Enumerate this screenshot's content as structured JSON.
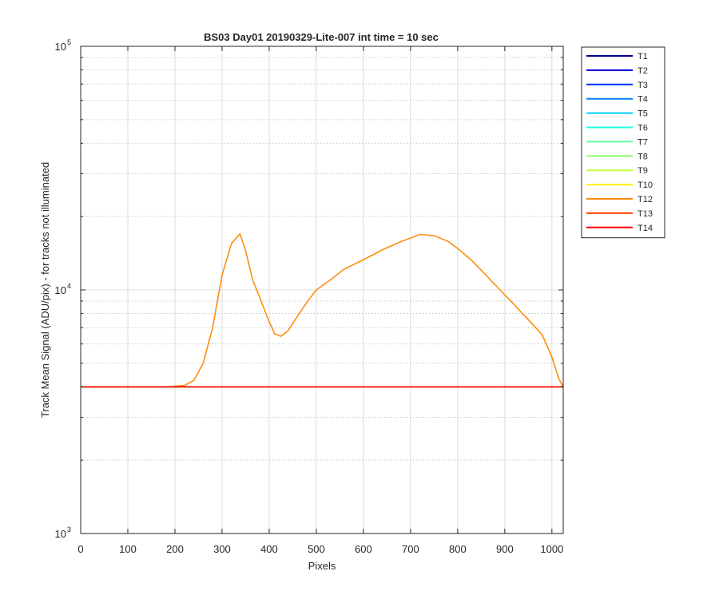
{
  "chart_data": {
    "type": "line",
    "title": "BS03 Day01 20190329-Lite-007 int time = 10 sec",
    "xlabel": "Pixels",
    "ylabel": "Track Mean Signal (ADU/pix) - for tracks not illuminated",
    "xlim": [
      0,
      1024
    ],
    "ylim": [
      1000,
      100000
    ],
    "yscale": "log",
    "grid": true,
    "legend_position": "outside-top-right",
    "x_ticks": [
      0,
      100,
      200,
      300,
      400,
      500,
      600,
      700,
      800,
      900,
      1000
    ],
    "x_tick_labels": [
      "0",
      "100",
      "200",
      "300",
      "400",
      "500",
      "600",
      "700",
      "800",
      "900",
      "1000"
    ],
    "y_ticks": [
      1000,
      10000,
      100000
    ],
    "y_tick_labels": [
      {
        "base": "10",
        "exp": "3"
      },
      {
        "base": "10",
        "exp": "4"
      },
      {
        "base": "10",
        "exp": "5"
      }
    ],
    "x": [
      0,
      1024
    ],
    "series": [
      {
        "name": "T1",
        "color": "#00008f",
        "baseline": 4000
      },
      {
        "name": "T2",
        "color": "#0000df",
        "baseline": 4000
      },
      {
        "name": "T3",
        "color": "#0030ff",
        "baseline": 4000
      },
      {
        "name": "T4",
        "color": "#0080ff",
        "baseline": 4000
      },
      {
        "name": "T5",
        "color": "#00cfff",
        "baseline": 4000
      },
      {
        "name": "T6",
        "color": "#20ffdf",
        "baseline": 4000
      },
      {
        "name": "T7",
        "color": "#60ffa0",
        "baseline": 4000
      },
      {
        "name": "T8",
        "color": "#90ff70",
        "baseline": 4000
      },
      {
        "name": "T9",
        "color": "#c0ff40",
        "baseline": 4000
      },
      {
        "name": "T10",
        "color": "#ffef00",
        "baseline": 4000
      },
      {
        "name": "T12",
        "color": "#ff8c10",
        "points": [
          [
            0,
            4000
          ],
          [
            180,
            4000
          ],
          [
            220,
            4050
          ],
          [
            240,
            4250
          ],
          [
            260,
            5000
          ],
          [
            280,
            7000
          ],
          [
            300,
            11500
          ],
          [
            320,
            15500
          ],
          [
            338,
            17000
          ],
          [
            350,
            14500
          ],
          [
            365,
            11000
          ],
          [
            380,
            9300
          ],
          [
            400,
            7400
          ],
          [
            412,
            6600
          ],
          [
            425,
            6450
          ],
          [
            440,
            6800
          ],
          [
            460,
            7800
          ],
          [
            480,
            8900
          ],
          [
            500,
            10000
          ],
          [
            530,
            11000
          ],
          [
            560,
            12200
          ],
          [
            600,
            13300
          ],
          [
            640,
            14600
          ],
          [
            680,
            15800
          ],
          [
            720,
            16900
          ],
          [
            750,
            16700
          ],
          [
            780,
            15800
          ],
          [
            800,
            14800
          ],
          [
            830,
            13200
          ],
          [
            860,
            11500
          ],
          [
            890,
            10000
          ],
          [
            920,
            8700
          ],
          [
            940,
            7900
          ],
          [
            960,
            7200
          ],
          [
            980,
            6500
          ],
          [
            1000,
            5300
          ],
          [
            1015,
            4300
          ],
          [
            1024,
            4000
          ]
        ]
      },
      {
        "name": "T13",
        "color": "#ff4010",
        "baseline": 4000
      },
      {
        "name": "T14",
        "color": "#ff0000",
        "baseline": 4000
      }
    ]
  }
}
